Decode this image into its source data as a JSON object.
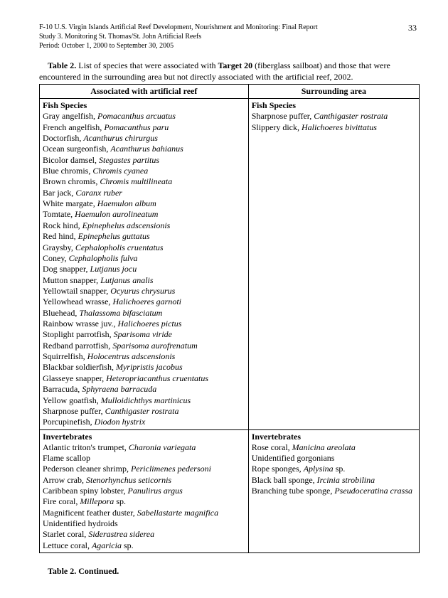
{
  "header": {
    "line1": "F-10 U.S. Virgin Islands Artificial Reef Development, Nourishment and Monitoring: Final Report",
    "line2": "Study 3.  Monitoring St. Thomas/St. John Artificial Reefs",
    "line3": "Period:  October 1, 2000 to September 30, 2005",
    "page": "33"
  },
  "caption": {
    "prefix": "Table 2.",
    "mid1": "  List of species that were associated with ",
    "bold2": "Target 20",
    "mid2": " (fiberglass sailboat) and those that were encountered in the surrounding area but not directly associated with the artificial reef, 2002."
  },
  "table": {
    "col1_header": "Associated with artificial reef",
    "col2_header": "Surrounding area",
    "fish_label": "Fish Species",
    "invert_label": "Invertebrates",
    "reef_fish": [
      {
        "c": "Gray angelfish, ",
        "s": "Pomacanthus arcuatus"
      },
      {
        "c": "French angelfish, ",
        "s": "Pomacanthus paru"
      },
      {
        "c": "Doctorfish, ",
        "s": "Acanthurus chirurgus"
      },
      {
        "c": "Ocean surgeonfish, ",
        "s": "Acanthurus bahianus"
      },
      {
        "c": "Bicolor damsel, ",
        "s": "Stegastes partitus"
      },
      {
        "c": "Blue chromis, ",
        "s": "Chromis cyanea"
      },
      {
        "c": "Brown chromis, ",
        "s": "Chromis multilineata"
      },
      {
        "c": "Bar jack, ",
        "s": "Caranx ruber"
      },
      {
        "c": "White margate, ",
        "s": "Haemulon album"
      },
      {
        "c": "Tomtate, ",
        "s": "Haemulon aurolineatum"
      },
      {
        "c": "Rock hind, ",
        "s": "Epinephelus adscensionis"
      },
      {
        "c": "Red hind, ",
        "s": "Epinephelus guttatus"
      },
      {
        "c": "Graysby, ",
        "s": "Cephalopholis cruentatus"
      },
      {
        "c": "Coney, ",
        "s": "Cephalopholis fulva"
      },
      {
        "c": "Dog snapper, ",
        "s": "Lutjanus jocu"
      },
      {
        "c": "Mutton snapper, ",
        "s": "Lutjanus analis"
      },
      {
        "c": "Yellowtail snapper, ",
        "s": "Ocyurus chrysurus"
      },
      {
        "c": "Yellowhead wrasse, ",
        "s": "Halichoeres garnoti"
      },
      {
        "c": "Bluehead, ",
        "s": "Thalassoma bifasciatum"
      },
      {
        "c": "Rainbow wrasse juv., ",
        "s": "Halichoeres pictus"
      },
      {
        "c": "Stoplight parrotfish, ",
        "s": "Sparisoma viride"
      },
      {
        "c": "Redband parrotfish, ",
        "s": "Sparisoma aurofrenatum"
      },
      {
        "c": "Squirrelfish, ",
        "s": "Holocentrus adscensionis"
      },
      {
        "c": "Blackbar soldierfish, ",
        "s": "Myripristis jacobus"
      },
      {
        "c": "Glasseye snapper, ",
        "s": "Heteropriacanthus cruentatus"
      },
      {
        "c": "Barracuda, ",
        "s": "Sphyraena barracuda"
      },
      {
        "c": "Yellow goatfish, ",
        "s": "Mulloidichthys martinicus"
      },
      {
        "c": "Sharpnose puffer, ",
        "s": "Canthigaster rostrata"
      },
      {
        "c": "Porcupinefish, ",
        "s": "Diodon hystrix"
      }
    ],
    "surround_fish": [
      {
        "c": "Sharpnose puffer, ",
        "s": "Canthigaster rostrata"
      },
      {
        "c": "Slippery dick, ",
        "s": "Halichoeres bivittatus"
      }
    ],
    "reef_invert": [
      {
        "c": "Atlantic triton's trumpet, ",
        "s": "Charonia variegata"
      },
      {
        "c": "Flame scallop",
        "s": ""
      },
      {
        "c": "Pederson cleaner shrimp, ",
        "s": "Periclimenes pedersoni"
      },
      {
        "c": "Arrow crab, ",
        "s": "Stenorhynchus seticornis"
      },
      {
        "c": "Caribbean spiny lobster, ",
        "s": "Panulirus argus"
      },
      {
        "c": "Fire coral, ",
        "s": "Millepora ",
        "t": "sp."
      },
      {
        "c": "Magnificent feather duster, ",
        "s": "Sabellastarte magnifica"
      },
      {
        "c": "Unidentified hydroids",
        "s": ""
      },
      {
        "c": "Starlet coral, ",
        "s": "Siderastrea siderea"
      },
      {
        "c": "Lettuce coral, ",
        "s": "Agaricia ",
        "t": "sp."
      }
    ],
    "surround_invert": [
      {
        "c": "Rose coral, ",
        "s": "Manicina areolata"
      },
      {
        "c": "Unidentified gorgonians",
        "s": ""
      },
      {
        "c": "Rope sponges, ",
        "s": "Aplysina ",
        "t": "sp."
      },
      {
        "c": "Black ball sponge, ",
        "s": "Ircinia strobilina"
      },
      {
        "c": "Branching tube sponge, ",
        "s": "Pseudoceratina crassa"
      }
    ]
  },
  "continued": "Table 2.  Continued."
}
